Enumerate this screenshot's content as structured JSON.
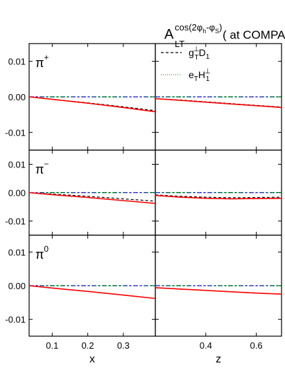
{
  "title": {
    "main": "A",
    "sub": "LT",
    "sup": "cos(2φ",
    "sup_h": "h",
    "sup_mid": "-φ",
    "sup_s": "S",
    "sup_end": ")",
    "tail": "( at  COMPASS"
  },
  "legend": [
    {
      "base": "g",
      "sup": "⊥",
      "sub": "T",
      "base2": "D",
      "sub2": "1",
      "style": "dashed",
      "color": "#000000"
    },
    {
      "base": "e",
      "sup": "",
      "sub": "T",
      "base2": "H",
      "sup2": "⊥",
      "sub2": "1",
      "style": "dotted",
      "color": "#00aa00"
    }
  ],
  "chart_data": {
    "type": "line",
    "rows": [
      {
        "hadron": "π",
        "hadron_sup": "+"
      },
      {
        "hadron": "π",
        "hadron_sup": "−"
      },
      {
        "hadron": "π",
        "hadron_sup": "0"
      }
    ],
    "ylim": [
      -0.015,
      0.015
    ],
    "yticks": [
      "0.01",
      "0.00",
      "-0.01"
    ],
    "ytick_values": [
      0.01,
      0.0,
      -0.01
    ],
    "x_panel": {
      "xlabel": "x",
      "xlim": [
        0.035,
        0.39
      ],
      "xticks": [
        "0.1",
        "0.2",
        "0.3"
      ],
      "xtick_values": [
        0.1,
        0.2,
        0.3
      ]
    },
    "z_panel": {
      "xlabel": "z",
      "xlim": [
        0.2,
        0.7
      ],
      "xticks": [
        "0.4",
        "0.6"
      ],
      "xtick_values": [
        0.4,
        0.6
      ]
    },
    "series_colors": {
      "total": "#ff0000",
      "g_D": "#000000",
      "e_H": "#00aa00",
      "baseline": "#0000cc"
    },
    "panels": [
      {
        "row": 0,
        "col": "x",
        "total": {
          "x": [
            0.035,
            0.1,
            0.2,
            0.3,
            0.39
          ],
          "y": [
            0.0,
            -0.0007,
            -0.0018,
            -0.003,
            -0.0042
          ]
        },
        "g_D": {
          "x": [
            0.035,
            0.1,
            0.2,
            0.3,
            0.39
          ],
          "y": [
            0.0,
            -0.0007,
            -0.0017,
            -0.0028,
            -0.0039
          ]
        },
        "e_H": {
          "x": [
            0.035,
            0.39
          ],
          "y": [
            0.0,
            0.0
          ]
        },
        "baseline": {
          "x": [
            0.035,
            0.39
          ],
          "y": [
            0.0,
            0.0
          ]
        }
      },
      {
        "row": 0,
        "col": "z",
        "total": {
          "x": [
            0.2,
            0.3,
            0.4,
            0.5,
            0.6,
            0.7
          ],
          "y": [
            -0.0005,
            -0.001,
            -0.0015,
            -0.002,
            -0.0025,
            -0.003
          ]
        },
        "g_D": {
          "x": [
            0.2,
            0.3,
            0.4,
            0.5,
            0.6,
            0.7
          ],
          "y": [
            -0.0005,
            -0.0009,
            -0.0014,
            -0.0019,
            -0.0024,
            -0.0029
          ]
        },
        "e_H": {
          "x": [
            0.2,
            0.7
          ],
          "y": [
            0.0,
            0.0
          ]
        },
        "baseline": {
          "x": [
            0.2,
            0.7
          ],
          "y": [
            0.0,
            0.0
          ]
        }
      },
      {
        "row": 1,
        "col": "x",
        "total": {
          "x": [
            0.035,
            0.1,
            0.2,
            0.3,
            0.39
          ],
          "y": [
            0.0,
            -0.0007,
            -0.0017,
            -0.0028,
            -0.0038
          ]
        },
        "g_D": {
          "x": [
            0.035,
            0.1,
            0.2,
            0.3,
            0.39
          ],
          "y": [
            0.0,
            -0.0005,
            -0.0013,
            -0.0022,
            -0.003
          ]
        },
        "e_H": {
          "x": [
            0.035,
            0.39
          ],
          "y": [
            0.0,
            0.0
          ]
        },
        "baseline": {
          "x": [
            0.035,
            0.39
          ],
          "y": [
            0.0,
            0.0
          ]
        }
      },
      {
        "row": 1,
        "col": "z",
        "total": {
          "x": [
            0.2,
            0.3,
            0.4,
            0.5,
            0.6,
            0.7
          ],
          "y": [
            -0.001,
            -0.0016,
            -0.002,
            -0.0022,
            -0.0021,
            -0.002
          ]
        },
        "g_D": {
          "x": [
            0.2,
            0.3,
            0.4,
            0.5,
            0.6,
            0.7
          ],
          "y": [
            -0.0008,
            -0.0013,
            -0.0016,
            -0.0018,
            -0.0017,
            -0.0016
          ]
        },
        "e_H": {
          "x": [
            0.2,
            0.7
          ],
          "y": [
            0.0,
            0.0
          ]
        },
        "baseline": {
          "x": [
            0.2,
            0.7
          ],
          "y": [
            0.0,
            0.0
          ]
        }
      },
      {
        "row": 2,
        "col": "x",
        "total": {
          "x": [
            0.035,
            0.1,
            0.2,
            0.3,
            0.39
          ],
          "y": [
            0.0,
            -0.0007,
            -0.0017,
            -0.0028,
            -0.0038
          ]
        },
        "g_D": {
          "x": [
            0.035,
            0.1,
            0.2,
            0.3,
            0.39
          ],
          "y": [
            0.0,
            -0.0007,
            -0.0017,
            -0.0028,
            -0.0038
          ]
        },
        "e_H": {
          "x": [
            0.035,
            0.39
          ],
          "y": [
            0.0,
            0.0
          ]
        },
        "baseline": {
          "x": [
            0.035,
            0.39
          ],
          "y": [
            0.0,
            0.0
          ]
        }
      },
      {
        "row": 2,
        "col": "z",
        "total": {
          "x": [
            0.2,
            0.3,
            0.4,
            0.5,
            0.6,
            0.7
          ],
          "y": [
            -0.0006,
            -0.001,
            -0.0014,
            -0.0018,
            -0.0022,
            -0.0025
          ]
        },
        "g_D": {
          "x": [
            0.2,
            0.3,
            0.4,
            0.5,
            0.6,
            0.7
          ],
          "y": [
            -0.0006,
            -0.001,
            -0.0014,
            -0.0018,
            -0.0022,
            -0.0025
          ]
        },
        "e_H": {
          "x": [
            0.2,
            0.7
          ],
          "y": [
            0.0,
            0.0
          ]
        },
        "baseline": {
          "x": [
            0.2,
            0.7
          ],
          "y": [
            0.0,
            0.0
          ]
        }
      }
    ]
  }
}
